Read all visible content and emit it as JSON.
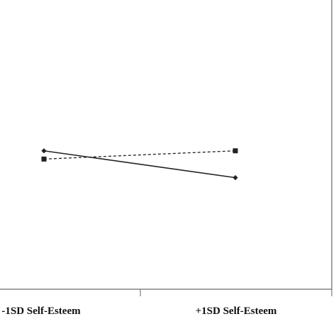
{
  "chart_data": {
    "type": "line",
    "categories": [
      "-1SD Self-Esteem",
      "+1SD Self-Esteem"
    ],
    "series": [
      {
        "values": [
          3.35,
          2.7
        ],
        "line_style": "solid",
        "marker": "diamond",
        "color": "#222222"
      },
      {
        "values": [
          3.15,
          3.35
        ],
        "line_style": "dashed",
        "marker": "square",
        "color": "#222222"
      }
    ],
    "ylim": [
      0,
      7
    ],
    "grid": false,
    "legend": "none"
  }
}
